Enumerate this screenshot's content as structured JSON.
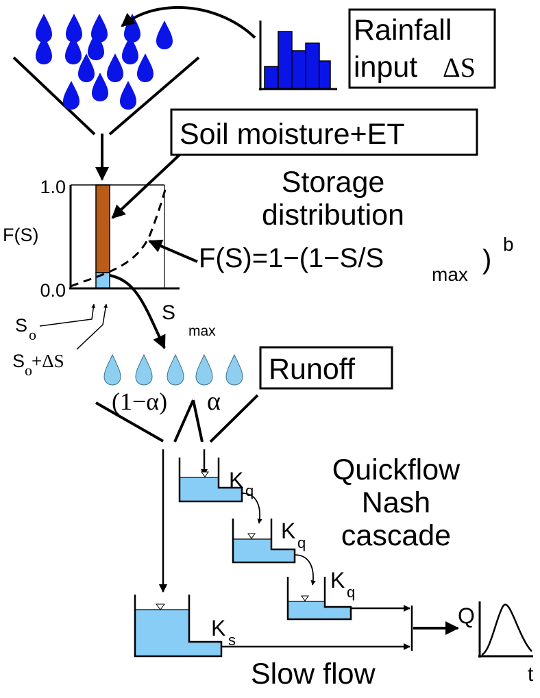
{
  "labels": {
    "rainfall_line1": "Rainfall",
    "rainfall_line2": "input",
    "rainfall_delta": "ΔS",
    "soil_moisture": "Soil moisture+ET",
    "storage_line1": "Storage",
    "storage_line2": "distribution",
    "formula_main": "F(S)=1−(1−S/S",
    "formula_sub": "max",
    "formula_close": ")",
    "formula_exp": "b",
    "axis_y_top": "1.0",
    "axis_y_bottom": "0.0",
    "axis_y_label": "F(S)",
    "smax_s": "S",
    "smax_sub": "max",
    "so_s": "S",
    "so_sub": "o",
    "sods_s": "S",
    "sods_sub": "o",
    "sods_rest": "+ΔS",
    "runoff": "Runoff",
    "one_minus_alpha": "(1−α)",
    "alpha": "α",
    "quickflow_line1": "Quickflow",
    "quickflow_line2": "Nash",
    "quickflow_line3": "cascade",
    "kq_k": "K",
    "kq_sub": "q",
    "ks_k": "K",
    "ks_sub": "s",
    "slow_flow": "Slow flow",
    "q_label": "Q",
    "t_label": "t"
  },
  "colors": {
    "rain_blue": "#0a14e6",
    "runoff_blue": "#8ecff0",
    "water_blue": "#88cdf5",
    "soil_brown": "#b85c18",
    "line": "#000000"
  },
  "icons": [
    "raindrop-icon",
    "histogram-icon",
    "hydrograph-icon",
    "water-level-marker-icon"
  ]
}
